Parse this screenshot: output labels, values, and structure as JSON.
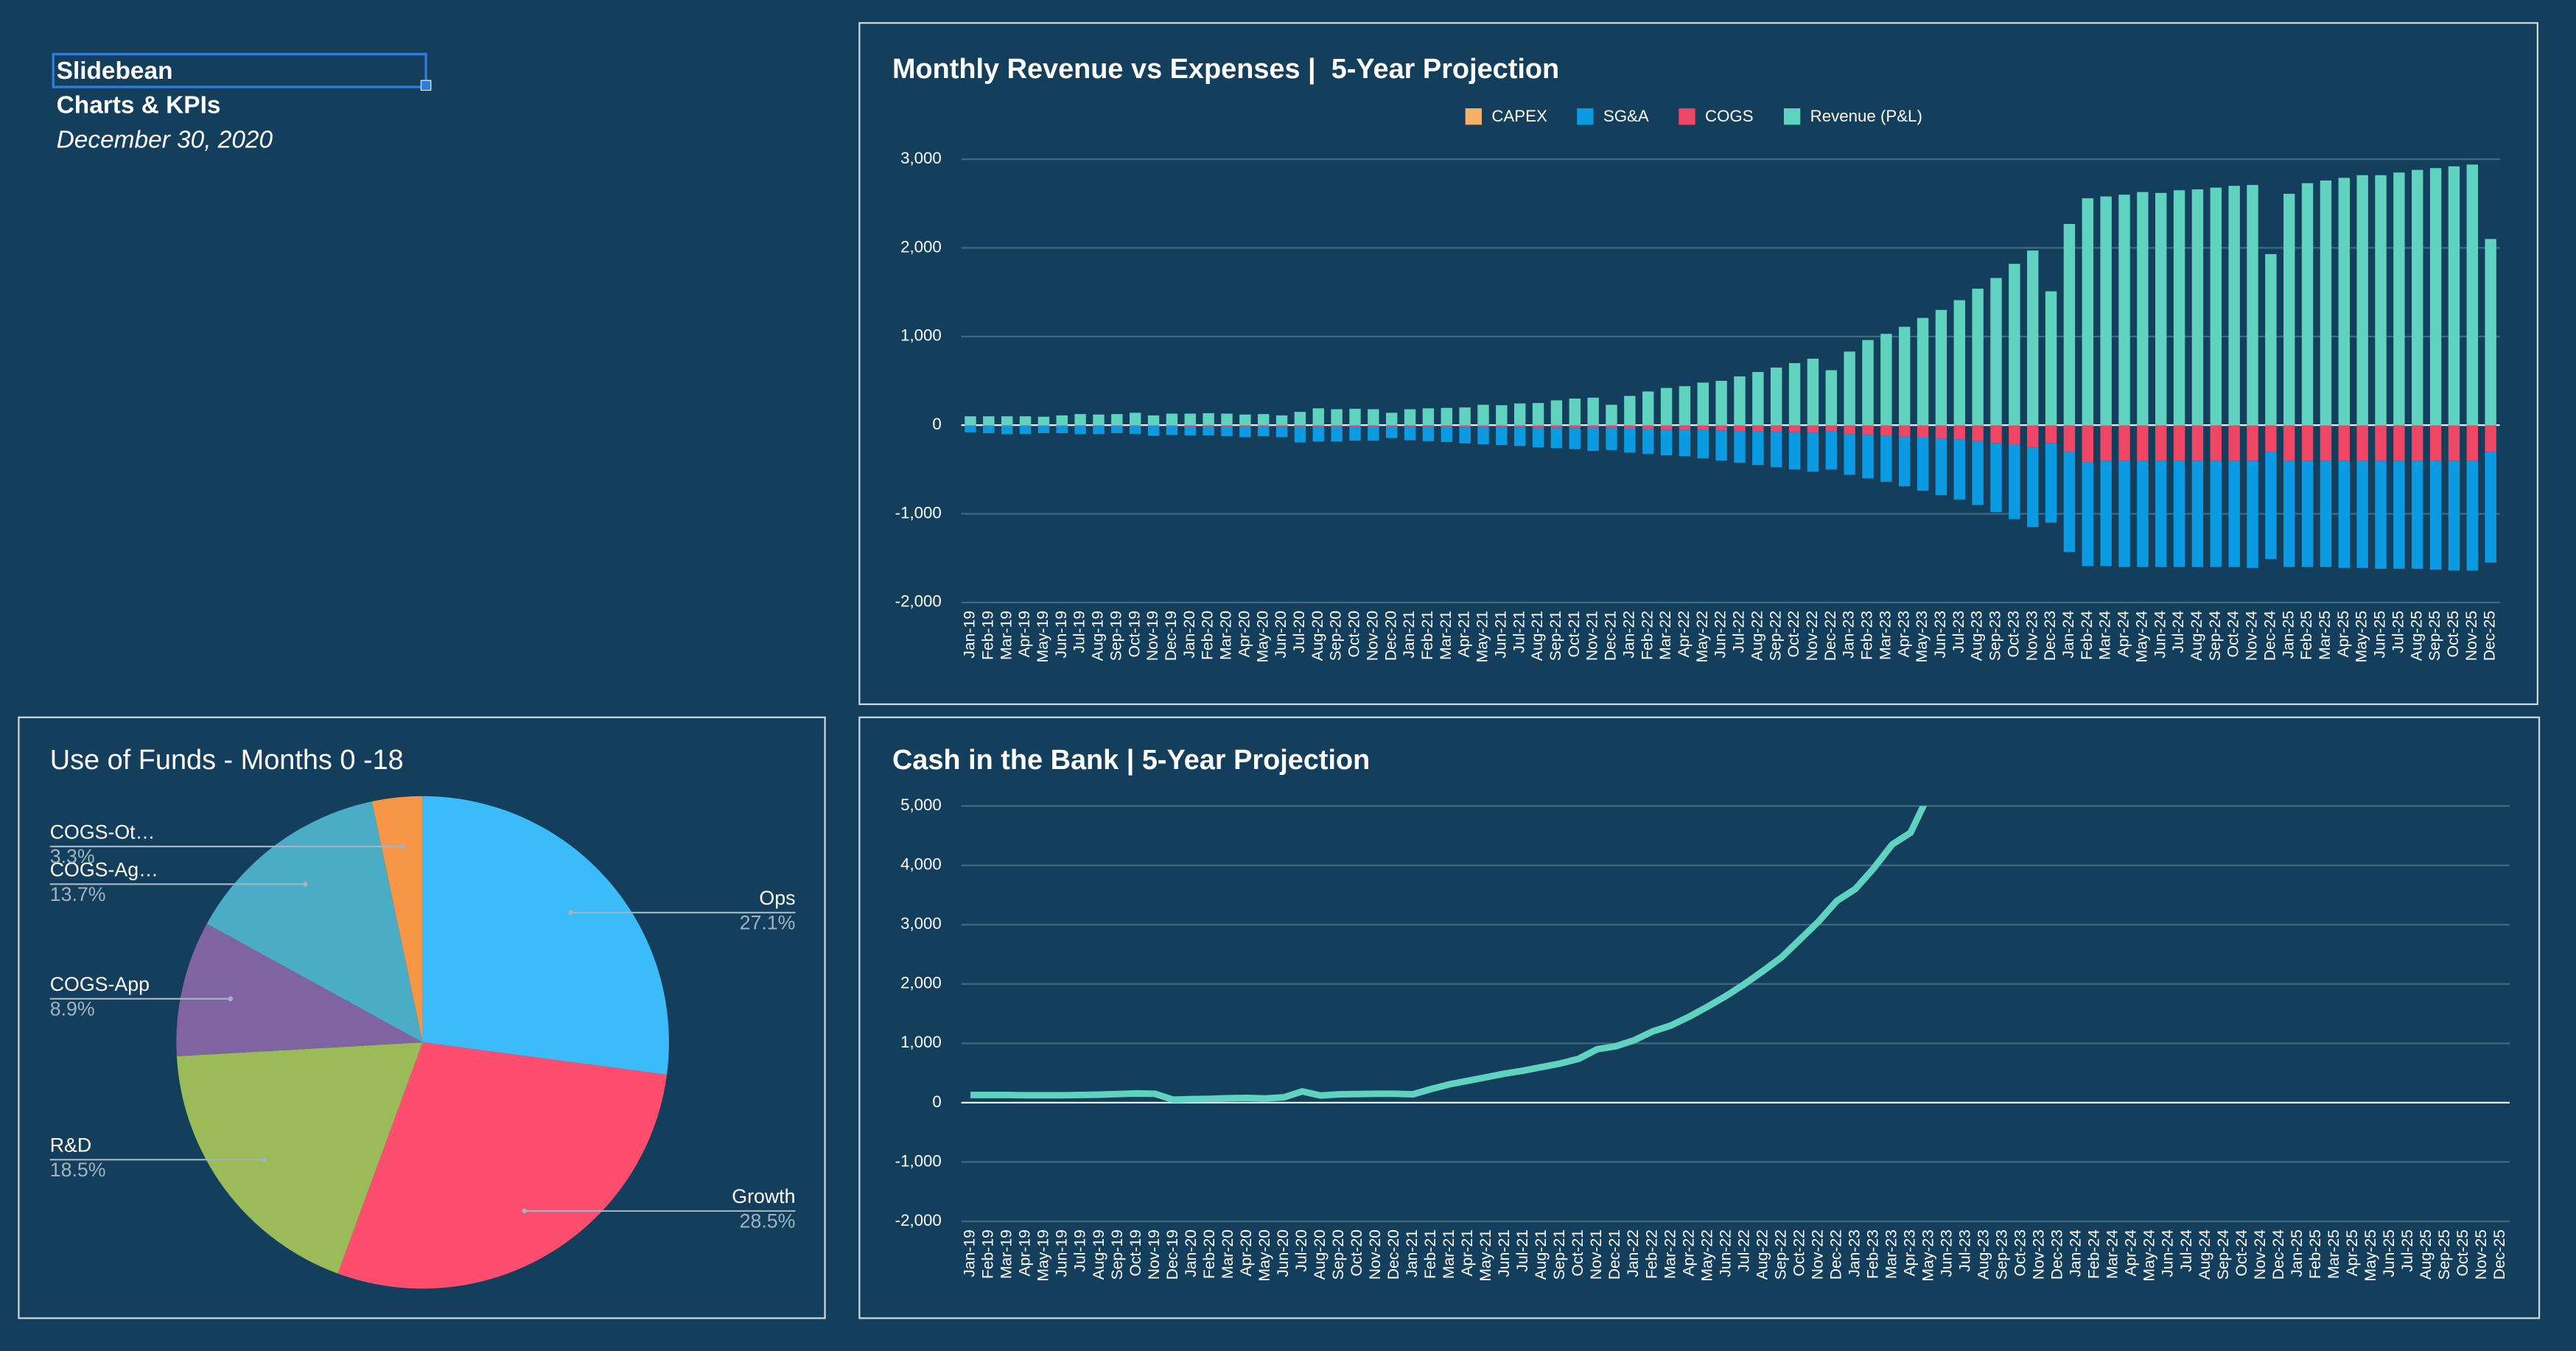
{
  "header": {
    "title": "Slidebean",
    "subtitle": "Charts & KPIs",
    "date": "December 30, 2020"
  },
  "chart_data": [
    {
      "type": "bar",
      "title": "Monthly Revenue vs Expenses |  5-Year Projection",
      "stacked": true,
      "grid": true,
      "legend": "top",
      "categories": [
        "Jan-19",
        "Feb-19",
        "Mar-19",
        "Apr-19",
        "May-19",
        "Jun-19",
        "Jul-19",
        "Aug-19",
        "Sep-19",
        "Oct-19",
        "Nov-19",
        "Dec-19",
        "Jan-20",
        "Feb-20",
        "Mar-20",
        "Apr-20",
        "May-20",
        "Jun-20",
        "Jul-20",
        "Aug-20",
        "Sep-20",
        "Oct-20",
        "Nov-20",
        "Dec-20",
        "Jan-21",
        "Feb-21",
        "Mar-21",
        "Apr-21",
        "May-21",
        "Jun-21",
        "Jul-21",
        "Aug-21",
        "Sep-21",
        "Oct-21",
        "Nov-21",
        "Dec-21",
        "Jan-22",
        "Feb-22",
        "Mar-22",
        "Apr-22",
        "May-22",
        "Jun-22",
        "Jul-22",
        "Aug-22",
        "Sep-22",
        "Oct-22",
        "Nov-22",
        "Dec-22",
        "Jan-23",
        "Feb-23",
        "Mar-23",
        "Apr-23",
        "May-23",
        "Jun-23",
        "Jul-23",
        "Aug-23",
        "Sep-23",
        "Oct-23",
        "Nov-23",
        "Dec-23",
        "Jan-24",
        "Feb-24",
        "Mar-24",
        "Apr-24",
        "May-24",
        "Jun-24",
        "Jul-24",
        "Aug-24",
        "Sep-24",
        "Oct-24",
        "Nov-24",
        "Dec-24",
        "Jan-25",
        "Feb-25",
        "Mar-25",
        "Apr-25",
        "May-25",
        "Jun-25",
        "Jul-25",
        "Aug-25",
        "Sep-25",
        "Oct-25",
        "Nov-25",
        "Dec-25"
      ],
      "series": [
        {
          "name": "CAPEX",
          "color": "#f6b26b",
          "values": [
            0,
            0,
            0,
            0,
            0,
            0,
            0,
            0,
            0,
            0,
            0,
            0,
            0,
            0,
            0,
            0,
            0,
            0,
            0,
            0,
            0,
            0,
            0,
            0,
            0,
            0,
            0,
            0,
            0,
            0,
            0,
            0,
            0,
            0,
            0,
            0,
            0,
            0,
            0,
            0,
            0,
            0,
            0,
            0,
            0,
            0,
            0,
            0,
            0,
            0,
            0,
            0,
            0,
            0,
            0,
            0,
            0,
            0,
            0,
            0,
            0,
            0,
            0,
            0,
            0,
            0,
            0,
            0,
            0,
            0,
            0,
            0,
            0,
            0,
            0,
            0,
            0,
            0,
            0,
            0,
            0,
            0,
            0,
            0
          ]
        },
        {
          "name": "SG&A",
          "color": "#0b9be3",
          "values": [
            -70,
            -80,
            -90,
            -90,
            -80,
            -80,
            -90,
            -90,
            -80,
            -90,
            -110,
            -100,
            -100,
            -100,
            -110,
            -120,
            -110,
            -120,
            -180,
            -170,
            -170,
            -160,
            -160,
            -130,
            -150,
            -160,
            -170,
            -180,
            -190,
            -200,
            -210,
            -220,
            -230,
            -240,
            -260,
            -250,
            -270,
            -280,
            -290,
            -300,
            -320,
            -340,
            -360,
            -380,
            -400,
            -420,
            -440,
            -430,
            -460,
            -490,
            -520,
            -560,
            -600,
            -640,
            -680,
            -720,
            -780,
            -840,
            -900,
            -900,
            -1130,
            -1170,
            -1190,
            -1200,
            -1200,
            -1200,
            -1200,
            -1200,
            -1200,
            -1200,
            -1210,
            -1210,
            -1200,
            -1200,
            -1200,
            -1210,
            -1210,
            -1220,
            -1220,
            -1220,
            -1230,
            -1240,
            -1240,
            -1250
          ]
        },
        {
          "name": "COGS",
          "color": "#ef4666",
          "values": [
            -10,
            -10,
            -10,
            -10,
            -10,
            -10,
            -10,
            -10,
            -10,
            -10,
            -10,
            -10,
            -15,
            -15,
            -15,
            -15,
            -15,
            -15,
            -15,
            -15,
            -15,
            -15,
            -15,
            -15,
            -20,
            -20,
            -20,
            -25,
            -25,
            -25,
            -25,
            -30,
            -30,
            -30,
            -30,
            -30,
            -40,
            -45,
            -50,
            -50,
            -55,
            -60,
            -65,
            -70,
            -75,
            -80,
            -85,
            -70,
            -100,
            -110,
            -120,
            -130,
            -140,
            -150,
            -160,
            -180,
            -200,
            -220,
            -250,
            -200,
            -300,
            -420,
            -400,
            -400,
            -400,
            -400,
            -400,
            -400,
            -400,
            -400,
            -400,
            -300,
            -400,
            -400,
            -400,
            -400,
            -400,
            -400,
            -400,
            -400,
            -400,
            -400,
            -400,
            -300
          ]
        },
        {
          "name": "Revenue (P&L)",
          "color": "#5fd3c0",
          "values": [
            100,
            100,
            100,
            100,
            95,
            110,
            125,
            120,
            125,
            140,
            110,
            130,
            130,
            135,
            130,
            120,
            125,
            110,
            150,
            190,
            180,
            185,
            180,
            140,
            180,
            190,
            195,
            200,
            230,
            225,
            245,
            250,
            280,
            300,
            310,
            230,
            330,
            380,
            420,
            440,
            480,
            500,
            550,
            600,
            650,
            700,
            750,
            620,
            830,
            960,
            1030,
            1110,
            1210,
            1300,
            1410,
            1540,
            1660,
            1820,
            1970,
            1510,
            2270,
            2560,
            2580,
            2600,
            2630,
            2620,
            2650,
            2660,
            2680,
            2700,
            2710,
            1930,
            2610,
            2730,
            2760,
            2790,
            2820,
            2820,
            2850,
            2880,
            2900,
            2920,
            2940,
            2100
          ]
        }
      ],
      "ylim": [
        -2000,
        3000
      ],
      "yticks": [
        {
          "value": -2000,
          "label": "-2,000"
        },
        {
          "value": -1000,
          "label": "-1,000"
        },
        0,
        {
          "value": 1000,
          "label": "1,000"
        },
        {
          "value": 2000,
          "label": "2,000"
        },
        {
          "value": 3000,
          "label": "3,000"
        }
      ]
    },
    {
      "type": "pie",
      "title": "Use of Funds - Months 0 -18",
      "categories": [
        "Ops",
        "Growth",
        "R&D",
        "COGS-App",
        "COGS-Ag…",
        "COGS-Ot…"
      ],
      "values": [
        27.1,
        28.5,
        18.5,
        8.9,
        13.7,
        3.3
      ],
      "value_labels": [
        "27.1%",
        "28.5%",
        "18.5%",
        "8.9%",
        "13.7%",
        "3.3%"
      ],
      "colors": [
        "#3bbcf8",
        "#ff4d6d",
        "#9bbb59",
        "#8064a2",
        "#4bacc6",
        "#f79646"
      ]
    },
    {
      "type": "line",
      "title": "Cash in the Bank | 5-Year Projection",
      "grid": true,
      "color": "#5fd3c0",
      "categories": [
        "Jan-19",
        "Feb-19",
        "Mar-19",
        "Apr-19",
        "May-19",
        "Jun-19",
        "Jul-19",
        "Aug-19",
        "Sep-19",
        "Oct-19",
        "Nov-19",
        "Dec-19",
        "Jan-20",
        "Feb-20",
        "Mar-20",
        "Apr-20",
        "May-20",
        "Jun-20",
        "Jul-20",
        "Aug-20",
        "Sep-20",
        "Oct-20",
        "Nov-20",
        "Dec-20",
        "Jan-21",
        "Feb-21",
        "Mar-21",
        "Apr-21",
        "May-21",
        "Jun-21",
        "Jul-21",
        "Aug-21",
        "Sep-21",
        "Oct-21",
        "Nov-21",
        "Dec-21",
        "Jan-22",
        "Feb-22",
        "Mar-22",
        "Apr-22",
        "May-22",
        "Jun-22",
        "Jul-22",
        "Aug-22",
        "Sep-22",
        "Oct-22",
        "Nov-22",
        "Dec-22",
        "Jan-23",
        "Feb-23",
        "Mar-23",
        "Apr-23",
        "May-23",
        "Jun-23",
        "Jul-23",
        "Aug-23",
        "Sep-23",
        "Oct-23",
        "Nov-23",
        "Dec-23",
        "Jan-24",
        "Feb-24",
        "Mar-24",
        "Apr-24",
        "May-24",
        "Jun-24",
        "Jul-24",
        "Aug-24",
        "Sep-24",
        "Oct-24",
        "Nov-24",
        "Dec-24",
        "Jan-25",
        "Feb-25",
        "Mar-25",
        "Apr-25",
        "May-25",
        "Jun-25",
        "Jul-25",
        "Aug-25",
        "Sep-25",
        "Oct-25",
        "Nov-25",
        "Dec-25"
      ],
      "values": [
        130,
        130,
        130,
        125,
        125,
        125,
        130,
        135,
        145,
        155,
        150,
        50,
        60,
        65,
        75,
        80,
        70,
        90,
        190,
        120,
        140,
        145,
        150,
        150,
        140,
        230,
        310,
        370,
        430,
        490,
        540,
        600,
        660,
        740,
        900,
        950,
        1050,
        1200,
        1300,
        1450,
        1620,
        1800,
        2000,
        2220,
        2450,
        2750,
        3050,
        3400,
        3600,
        3950,
        4350,
        4550,
        5200,
        null,
        null,
        null,
        null,
        null,
        null,
        null,
        null,
        null,
        null,
        null,
        null,
        null,
        null,
        null,
        null,
        null,
        null,
        null,
        null,
        null,
        null,
        null,
        null,
        null,
        null,
        null,
        null,
        null,
        null,
        null
      ],
      "ylim": [
        -2000,
        5000
      ],
      "yticks": [
        {
          "value": -2000,
          "label": "-2,000"
        },
        {
          "value": -1000,
          "label": "-1,000"
        },
        0,
        {
          "value": 1000,
          "label": "1,000"
        },
        {
          "value": 2000,
          "label": "2,000"
        },
        {
          "value": 3000,
          "label": "3,000"
        },
        {
          "value": 4000,
          "label": "4,000"
        },
        {
          "value": 5000,
          "label": "5,000"
        }
      ]
    }
  ]
}
